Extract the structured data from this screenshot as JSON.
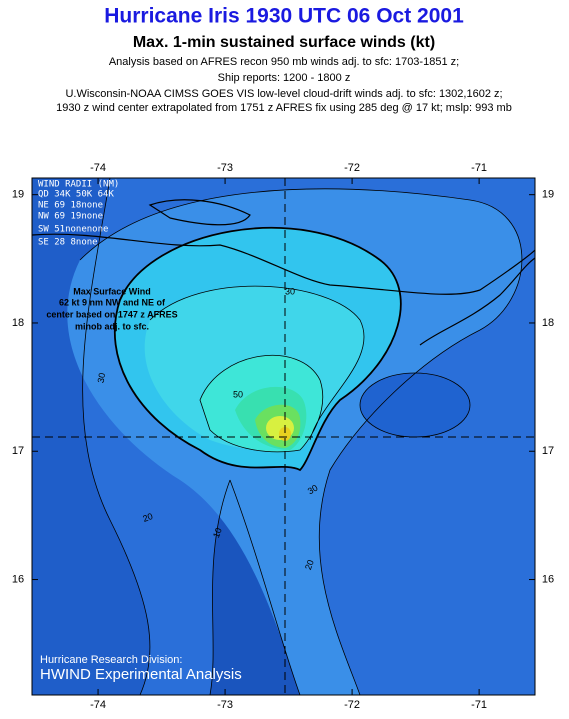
{
  "header": {
    "title": "Hurricane Iris 1930 UTC 06 Oct 2001",
    "subtitle": "Max. 1-min sustained surface winds (kt)",
    "lines": [
      "Analysis based on AFRES recon 950 mb winds adj. to sfc: 1703-1851 z;",
      "Ship reports: 1200 -  1800 z",
      "U.Wisconsin-NOAA CIMSS GOES VIS low-level cloud-drift winds adj. to sfc: 1302,1602 z;",
      "1930 z wind center extrapolated from  1751 z AFRES fix using 285 deg @  17 kt; mslp: 993 mb"
    ]
  },
  "map": {
    "xlim": [
      -74.52,
      -70.56
    ],
    "ylim": [
      15.1,
      19.13
    ],
    "xticks": [
      -74,
      -73,
      -72,
      -71
    ],
    "yticks": [
      16,
      17,
      18,
      19
    ],
    "contour_labels": [
      30,
      30,
      50,
      30,
      20,
      10,
      20
    ]
  },
  "wind_radii": {
    "title": "WIND RADII (NM)",
    "rows": [
      "QD  34K  50K  64K",
      "NE   69   18none",
      "NW   69   19none",
      "SW   51nonenone",
      "SE   28    8none"
    ]
  },
  "annotation": [
    "Max Surface Wind",
    "62 kt 9 nm NW and NE of",
    "center based on 1747 z AFRES",
    "minob adj. to sfc."
  ],
  "footer": [
    "Hurricane Research Division:",
    "HWIND Experimental Analysis"
  ]
}
